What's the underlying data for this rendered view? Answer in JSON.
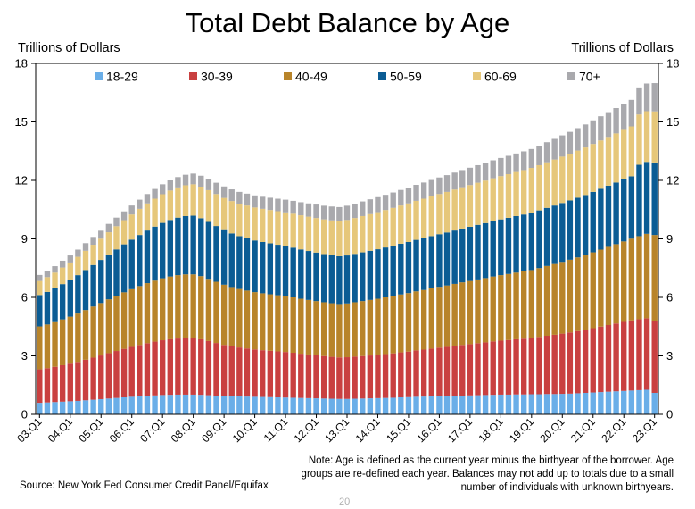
{
  "page": {
    "title": "Total Debt Balance by Age",
    "unit_left": "Trillions of Dollars",
    "unit_right": "Trillions of Dollars",
    "note": "Note: Age is defined as the current year minus the birthyear of the borrower. Age groups are re-defined each year. Balances may not add up to totals due to a small number of individuals with unknown birthyears.",
    "source": "Source: New York Fed Consumer Credit Panel/Equifax",
    "page_number": "20"
  },
  "chart_data": {
    "type": "bar",
    "stacked": true,
    "ylim": [
      0,
      18
    ],
    "yticks": [
      "0",
      "3",
      "6",
      "9",
      "12",
      "15",
      "18"
    ],
    "x_tick_labels": [
      "03:Q1",
      "04:Q1",
      "05:Q1",
      "06:Q1",
      "07:Q1",
      "08:Q1",
      "09:Q1",
      "10:Q1",
      "11:Q1",
      "12:Q1",
      "13:Q1",
      "14:Q1",
      "15:Q1",
      "16:Q1",
      "17:Q1",
      "18:Q1",
      "19:Q1",
      "20:Q1",
      "21:Q1",
      "22:Q1",
      "23:Q1"
    ],
    "legend_position": "top",
    "grid": false,
    "series": [
      {
        "name": "18-29",
        "color": "#6aaee8",
        "values": [
          0.59,
          0.61,
          0.63,
          0.65,
          0.67,
          0.69,
          0.72,
          0.75,
          0.78,
          0.81,
          0.84,
          0.87,
          0.9,
          0.93,
          0.95,
          0.97,
          0.99,
          1.0,
          1.01,
          1.01,
          1.01,
          1.0,
          0.98,
          0.96,
          0.94,
          0.93,
          0.92,
          0.91,
          0.9,
          0.89,
          0.88,
          0.87,
          0.86,
          0.85,
          0.84,
          0.83,
          0.82,
          0.81,
          0.8,
          0.79,
          0.79,
          0.8,
          0.81,
          0.82,
          0.83,
          0.84,
          0.85,
          0.87,
          0.88,
          0.9,
          0.91,
          0.92,
          0.93,
          0.94,
          0.95,
          0.96,
          0.97,
          0.98,
          0.99,
          1.0,
          1.01,
          1.01,
          1.02,
          1.02,
          1.03,
          1.03,
          1.04,
          1.04,
          1.05,
          1.06,
          1.08,
          1.1,
          1.12,
          1.14,
          1.16,
          1.18,
          1.2,
          1.22,
          1.24,
          1.26,
          1.1
        ]
      },
      {
        "name": "30-39",
        "color": "#c94040",
        "values": [
          1.72,
          1.76,
          1.81,
          1.87,
          1.93,
          2.0,
          2.08,
          2.16,
          2.24,
          2.33,
          2.41,
          2.49,
          2.56,
          2.63,
          2.7,
          2.76,
          2.81,
          2.85,
          2.88,
          2.9,
          2.9,
          2.85,
          2.78,
          2.7,
          2.62,
          2.56,
          2.51,
          2.47,
          2.43,
          2.4,
          2.38,
          2.36,
          2.34,
          2.31,
          2.27,
          2.24,
          2.21,
          2.18,
          2.15,
          2.13,
          2.14,
          2.16,
          2.18,
          2.2,
          2.22,
          2.25,
          2.28,
          2.31,
          2.34,
          2.38,
          2.41,
          2.45,
          2.49,
          2.52,
          2.56,
          2.6,
          2.63,
          2.67,
          2.7,
          2.74,
          2.77,
          2.8,
          2.83,
          2.86,
          2.89,
          2.94,
          2.99,
          3.04,
          3.09,
          3.14,
          3.19,
          3.24,
          3.3,
          3.36,
          3.42,
          3.48,
          3.54,
          3.6,
          3.64,
          3.67,
          3.7
        ]
      },
      {
        "name": "40-49",
        "color": "#b8842a",
        "values": [
          2.2,
          2.24,
          2.29,
          2.35,
          2.41,
          2.48,
          2.55,
          2.62,
          2.69,
          2.76,
          2.83,
          2.9,
          2.96,
          3.02,
          3.08,
          3.13,
          3.18,
          3.22,
          3.25,
          3.27,
          3.27,
          3.24,
          3.19,
          3.14,
          3.09,
          3.04,
          3.0,
          2.97,
          2.94,
          2.92,
          2.9,
          2.88,
          2.86,
          2.84,
          2.82,
          2.8,
          2.78,
          2.76,
          2.75,
          2.74,
          2.76,
          2.79,
          2.82,
          2.85,
          2.88,
          2.91,
          2.94,
          2.97,
          3.0,
          3.03,
          3.06,
          3.09,
          3.12,
          3.15,
          3.18,
          3.21,
          3.24,
          3.27,
          3.3,
          3.33,
          3.36,
          3.39,
          3.42,
          3.45,
          3.48,
          3.53,
          3.58,
          3.63,
          3.68,
          3.73,
          3.78,
          3.83,
          3.89,
          3.95,
          4.01,
          4.07,
          4.13,
          4.19,
          4.26,
          4.33,
          4.4
        ]
      },
      {
        "name": "50-59",
        "color": "#0b5c94",
        "values": [
          1.61,
          1.67,
          1.74,
          1.81,
          1.89,
          1.97,
          2.05,
          2.13,
          2.21,
          2.3,
          2.38,
          2.46,
          2.54,
          2.62,
          2.7,
          2.77,
          2.84,
          2.9,
          2.95,
          2.99,
          3.01,
          2.97,
          2.92,
          2.86,
          2.8,
          2.75,
          2.71,
          2.68,
          2.65,
          2.63,
          2.61,
          2.59,
          2.57,
          2.55,
          2.53,
          2.51,
          2.49,
          2.47,
          2.46,
          2.45,
          2.46,
          2.48,
          2.5,
          2.52,
          2.54,
          2.56,
          2.58,
          2.6,
          2.62,
          2.64,
          2.66,
          2.68,
          2.7,
          2.72,
          2.74,
          2.76,
          2.78,
          2.8,
          2.82,
          2.84,
          2.86,
          2.88,
          2.9,
          2.92,
          2.94,
          2.96,
          2.98,
          3.0,
          3.02,
          3.04,
          3.06,
          3.08,
          3.1,
          3.12,
          3.14,
          3.16,
          3.18,
          3.2,
          3.66,
          3.69,
          3.72
        ]
      },
      {
        "name": "60-69",
        "color": "#e6c77a",
        "values": [
          0.72,
          0.76,
          0.8,
          0.85,
          0.89,
          0.94,
          0.99,
          1.04,
          1.09,
          1.14,
          1.19,
          1.24,
          1.29,
          1.34,
          1.39,
          1.43,
          1.47,
          1.51,
          1.55,
          1.58,
          1.61,
          1.62,
          1.63,
          1.64,
          1.65,
          1.66,
          1.67,
          1.68,
          1.69,
          1.7,
          1.71,
          1.72,
          1.73,
          1.74,
          1.75,
          1.76,
          1.77,
          1.78,
          1.79,
          1.8,
          1.82,
          1.84,
          1.86,
          1.88,
          1.9,
          1.92,
          1.94,
          1.96,
          1.98,
          2.0,
          2.02,
          2.04,
          2.06,
          2.08,
          2.1,
          2.12,
          2.14,
          2.16,
          2.18,
          2.2,
          2.22,
          2.24,
          2.26,
          2.28,
          2.3,
          2.32,
          2.34,
          2.36,
          2.38,
          2.4,
          2.42,
          2.44,
          2.46,
          2.48,
          2.5,
          2.52,
          2.54,
          2.56,
          2.58,
          2.6,
          2.62
        ]
      },
      {
        "name": "70+",
        "color": "#a9a9ad",
        "values": [
          0.31,
          0.32,
          0.33,
          0.35,
          0.36,
          0.37,
          0.39,
          0.4,
          0.41,
          0.43,
          0.44,
          0.45,
          0.46,
          0.47,
          0.48,
          0.5,
          0.51,
          0.52,
          0.53,
          0.54,
          0.55,
          0.56,
          0.57,
          0.58,
          0.59,
          0.6,
          0.6,
          0.61,
          0.62,
          0.62,
          0.63,
          0.64,
          0.65,
          0.66,
          0.67,
          0.68,
          0.69,
          0.7,
          0.71,
          0.72,
          0.73,
          0.74,
          0.75,
          0.76,
          0.77,
          0.78,
          0.79,
          0.8,
          0.81,
          0.82,
          0.83,
          0.84,
          0.85,
          0.86,
          0.87,
          0.88,
          0.89,
          0.9,
          0.91,
          0.92,
          0.93,
          0.94,
          0.95,
          0.96,
          0.97,
          1.0,
          1.03,
          1.06,
          1.09,
          1.12,
          1.15,
          1.18,
          1.21,
          1.24,
          1.27,
          1.3,
          1.33,
          1.36,
          1.39,
          1.42,
          1.45
        ]
      }
    ]
  }
}
